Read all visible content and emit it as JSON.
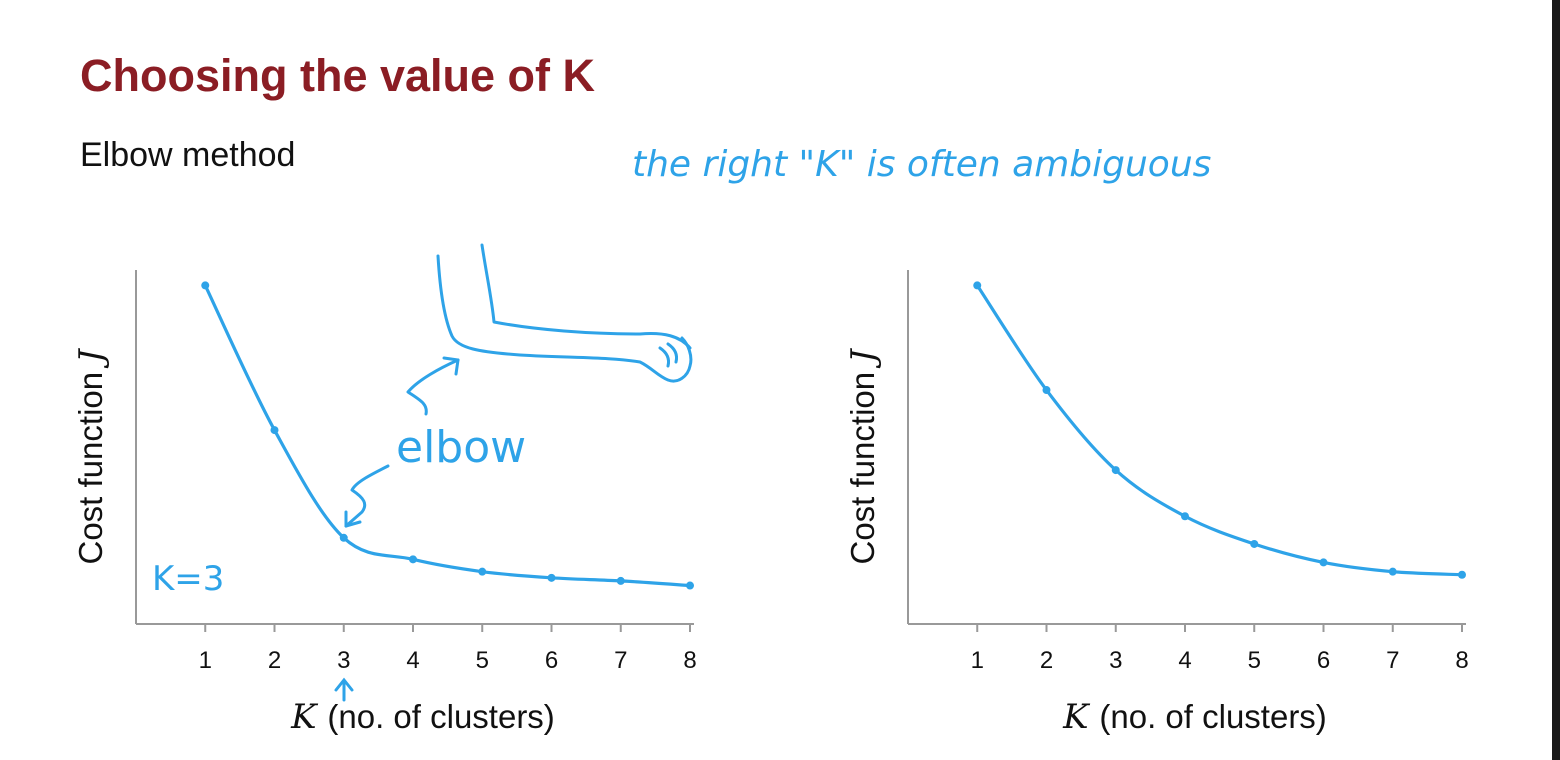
{
  "slide": {
    "title": "Choosing the value of K",
    "subtitle": "Elbow method"
  },
  "annotations": {
    "note": "the right \"K\" is often ambiguous",
    "elbow": "elbow",
    "k_label": "K=3"
  },
  "colors": {
    "title": "#8b1d24",
    "curve": "#2ea3e8",
    "axis": "#999999",
    "text": "#111111"
  },
  "chart_data": [
    {
      "type": "line",
      "x": [
        1,
        2,
        3,
        4,
        5,
        6,
        7,
        8
      ],
      "values": [
        1.0,
        0.53,
        0.18,
        0.11,
        0.07,
        0.05,
        0.04,
        0.025
      ],
      "ylabel_text": "Cost function",
      "ylabel_symbol": "J",
      "xlabel_symbol": "K",
      "xlabel_text": "(no. of clusters)",
      "xlim": [
        0,
        8
      ],
      "ylim": [
        -0.1,
        1.05
      ],
      "grid": false
    },
    {
      "type": "line",
      "x": [
        1,
        2,
        3,
        4,
        5,
        6,
        7,
        8
      ],
      "values": [
        1.0,
        0.66,
        0.4,
        0.25,
        0.16,
        0.1,
        0.07,
        0.06
      ],
      "ylabel_text": "Cost function",
      "ylabel_symbol": "J",
      "xlabel_symbol": "K",
      "xlabel_text": "(no. of clusters)",
      "xlim": [
        0,
        8
      ],
      "ylim": [
        -0.1,
        1.05
      ],
      "grid": false
    }
  ]
}
